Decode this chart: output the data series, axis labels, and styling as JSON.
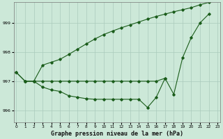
{
  "xlabel": "Graphe pression niveau de la mer (hPa)",
  "background_color": "#cce8d8",
  "plot_bg_color": "#cce8d8",
  "grid_color": "#aacabc",
  "line_color": "#1a5c1a",
  "ylim": [
    995.6,
    999.7
  ],
  "xlim": [
    -0.3,
    23.3
  ],
  "yticks": [
    996,
    997,
    998,
    999
  ],
  "xtick_labels": [
    "0",
    "1",
    "2",
    "3",
    "4",
    "5",
    "6",
    "7",
    "8",
    "9",
    "10",
    "11",
    "12",
    "13",
    "14",
    "15",
    "16",
    "17",
    "18",
    "19",
    "20",
    "21",
    "22",
    "23"
  ],
  "xtick_pos": [
    0,
    1,
    2,
    3,
    4,
    5,
    6,
    7,
    8,
    9,
    10,
    11,
    12,
    13,
    14,
    15,
    16,
    17,
    18,
    19,
    20,
    21,
    22,
    23
  ],
  "series1_x": [
    0,
    1,
    2,
    3,
    4,
    5,
    6,
    7,
    8,
    9,
    10,
    11,
    12,
    13,
    14,
    15,
    16,
    17,
    18,
    19,
    20,
    21,
    22
  ],
  "series1_y": [
    997.3,
    997.0,
    997.0,
    996.8,
    996.7,
    996.65,
    996.5,
    996.45,
    996.4,
    996.38,
    996.38,
    996.38,
    996.38,
    996.38,
    996.38,
    996.1,
    996.45,
    997.1,
    996.55,
    997.8,
    998.5,
    999.0,
    999.3
  ],
  "series2_x": [
    0,
    1,
    2,
    3,
    4,
    5,
    6,
    7,
    8,
    9,
    10,
    11,
    12,
    13,
    14,
    15,
    16,
    17,
    18,
    19,
    20,
    21,
    22
  ],
  "series2_y": [
    997.3,
    997.0,
    997.0,
    997.55,
    997.65,
    997.75,
    997.92,
    998.1,
    998.28,
    998.45,
    998.6,
    998.72,
    998.83,
    998.93,
    999.03,
    999.13,
    999.22,
    999.3,
    999.38,
    999.45,
    999.52,
    999.62,
    999.7
  ],
  "series3_x": [
    1,
    2,
    3,
    4,
    5,
    6,
    7,
    8,
    9,
    10,
    11,
    12,
    13,
    14,
    15,
    16,
    17
  ],
  "series3_y": [
    997.0,
    997.0,
    997.0,
    997.0,
    997.0,
    997.0,
    997.0,
    997.0,
    997.0,
    997.0,
    997.0,
    997.0,
    997.0,
    997.0,
    997.0,
    997.0,
    997.1
  ]
}
